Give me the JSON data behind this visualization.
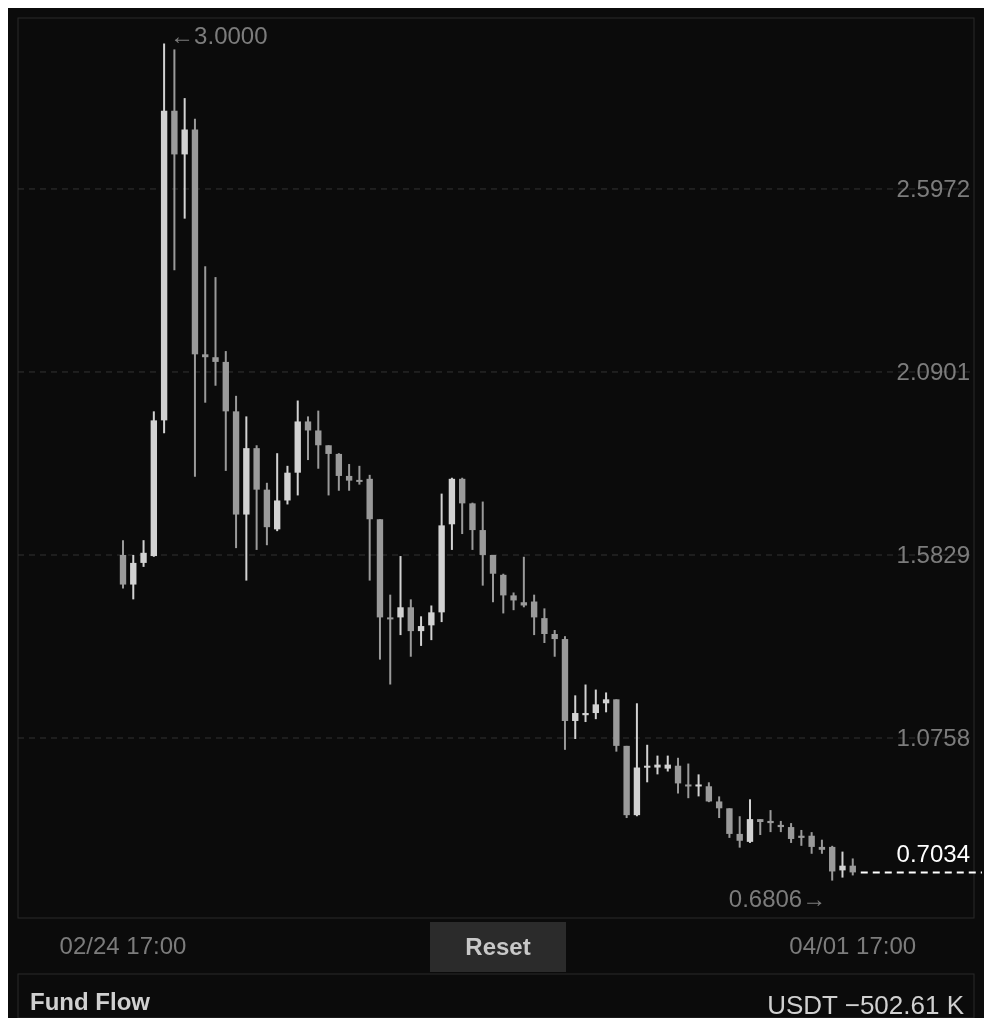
{
  "chart_data": {
    "type": "candlestick",
    "categories": [
      "02/24 17:00",
      null,
      null,
      null,
      null,
      null,
      null,
      null,
      null,
      null,
      null,
      null,
      null,
      null,
      null,
      null,
      null,
      null,
      null,
      null,
      null,
      null,
      null,
      null,
      null,
      null,
      null,
      null,
      null,
      null,
      null,
      null,
      null,
      null,
      null,
      null,
      null,
      null,
      null,
      null,
      null,
      null,
      null,
      null,
      null,
      null,
      null,
      null,
      null,
      null,
      null,
      null,
      null,
      null,
      null,
      null,
      null,
      null,
      null,
      null,
      null,
      null,
      null,
      null,
      null,
      null,
      null,
      null,
      null,
      null,
      null,
      "04/01 17:00"
    ],
    "colors": [
      "#9a9a9a",
      "#d2d2d2",
      "#d2d2d2",
      "#d2d2d2",
      "#d2d2d2",
      "#9a9a9a",
      "#d2d2d2",
      "#9a9a9a",
      "#9a9a9a",
      "#9a9a9a",
      "#9a9a9a",
      "#9a9a9a",
      "#d2d2d2",
      "#9a9a9a",
      "#9a9a9a",
      "#d2d2d2",
      "#d2d2d2",
      "#d2d2d2",
      "#9a9a9a",
      "#9a9a9a",
      "#9a9a9a",
      "#9a9a9a",
      "#9a9a9a",
      "#9a9a9a",
      "#9a9a9a",
      "#9a9a9a",
      "#9a9a9a",
      "#d2d2d2",
      "#9a9a9a",
      "#d2d2d2",
      "#d2d2d2",
      "#d2d2d2",
      "#d2d2d2",
      "#9a9a9a",
      "#9a9a9a",
      "#9a9a9a",
      "#9a9a9a",
      "#9a9a9a",
      "#9a9a9a",
      "#9a9a9a",
      "#9a9a9a",
      "#9a9a9a",
      "#9a9a9a",
      "#9a9a9a",
      "#d2d2d2",
      "#d2d2d2",
      "#d2d2d2",
      "#d2d2d2",
      "#9a9a9a",
      "#9a9a9a",
      "#d2d2d2",
      "#d2d2d2",
      "#d2d2d2",
      "#d2d2d2",
      "#9a9a9a",
      "#9a9a9a",
      "#d2d2d2",
      "#9a9a9a",
      "#9a9a9a",
      "#9a9a9a",
      "#9a9a9a",
      "#d2d2d2",
      "#9a9a9a",
      "#9a9a9a",
      "#9a9a9a",
      "#9a9a9a",
      "#9a9a9a",
      "#9a9a9a",
      "#9a9a9a",
      "#9a9a9a",
      "#d2d2d2",
      "#9a9a9a"
    ],
    "ohlc": [
      [
        1.583,
        1.624,
        1.49,
        1.501
      ],
      [
        1.501,
        1.583,
        1.46,
        1.561
      ],
      [
        1.561,
        1.624,
        1.55,
        1.589
      ],
      [
        1.58,
        1.981,
        1.578,
        1.956
      ],
      [
        1.956,
        3.0,
        1.92,
        2.814
      ],
      [
        2.814,
        2.984,
        2.372,
        2.693
      ],
      [
        2.693,
        2.849,
        2.515,
        2.762
      ],
      [
        2.762,
        2.792,
        1.8,
        2.139
      ],
      [
        2.139,
        2.383,
        2.005,
        2.131
      ],
      [
        2.131,
        2.353,
        2.052,
        2.118
      ],
      [
        2.118,
        2.148,
        1.816,
        1.981
      ],
      [
        1.981,
        2.024,
        1.602,
        1.695
      ],
      [
        1.695,
        1.967,
        1.512,
        1.879
      ],
      [
        1.879,
        1.887,
        1.597,
        1.764
      ],
      [
        1.764,
        1.783,
        1.61,
        1.66
      ],
      [
        1.654,
        1.865,
        1.649,
        1.734
      ],
      [
        1.734,
        1.83,
        1.723,
        1.811
      ],
      [
        1.811,
        2.011,
        1.748,
        1.953
      ],
      [
        1.953,
        1.967,
        1.846,
        1.928
      ],
      [
        1.928,
        1.983,
        1.822,
        1.887
      ],
      [
        1.887,
        1.887,
        1.748,
        1.863
      ],
      [
        1.863,
        1.865,
        1.761,
        1.802
      ],
      [
        1.802,
        1.835,
        1.761,
        1.789
      ],
      [
        1.791,
        1.83,
        1.778,
        1.786
      ],
      [
        1.794,
        1.805,
        1.512,
        1.682
      ],
      [
        1.682,
        1.682,
        1.293,
        1.41
      ],
      [
        1.41,
        1.473,
        1.224,
        1.405
      ],
      [
        1.41,
        1.58,
        1.361,
        1.438
      ],
      [
        1.438,
        1.46,
        1.301,
        1.372
      ],
      [
        1.372,
        1.413,
        1.331,
        1.386
      ],
      [
        1.388,
        1.443,
        1.347,
        1.424
      ],
      [
        1.424,
        1.753,
        1.397,
        1.665
      ],
      [
        1.668,
        1.797,
        1.597,
        1.794
      ],
      [
        1.794,
        1.797,
        1.641,
        1.726
      ],
      [
        1.726,
        1.728,
        1.597,
        1.652
      ],
      [
        1.652,
        1.731,
        1.498,
        1.583
      ],
      [
        1.583,
        1.583,
        1.452,
        1.531
      ],
      [
        1.528,
        1.531,
        1.421,
        1.471
      ],
      [
        1.471,
        1.479,
        1.43,
        1.457
      ],
      [
        1.452,
        1.578,
        1.438,
        1.443
      ],
      [
        1.454,
        1.473,
        1.361,
        1.41
      ],
      [
        1.408,
        1.435,
        1.339,
        1.364
      ],
      [
        1.364,
        1.375,
        1.301,
        1.35
      ],
      [
        1.35,
        1.358,
        1.043,
        1.123
      ],
      [
        1.123,
        1.194,
        1.073,
        1.145
      ],
      [
        1.139,
        1.224,
        1.12,
        1.145
      ],
      [
        1.145,
        1.21,
        1.128,
        1.169
      ],
      [
        1.172,
        1.202,
        1.147,
        1.183
      ],
      [
        1.183,
        1.183,
        1.038,
        1.054
      ],
      [
        1.054,
        1.054,
        0.854,
        0.862
      ],
      [
        0.862,
        1.172,
        0.859,
        0.994
      ],
      [
        0.994,
        1.057,
        0.953,
        0.999
      ],
      [
        0.994,
        1.027,
        0.975,
        1.002
      ],
      [
        0.991,
        1.027,
        0.983,
        1.002
      ],
      [
        0.999,
        1.021,
        0.922,
        0.95
      ],
      [
        0.947,
        1.005,
        0.909,
        0.942
      ],
      [
        0.942,
        0.975,
        0.914,
        0.947
      ],
      [
        0.942,
        0.953,
        0.898,
        0.9
      ],
      [
        0.9,
        0.914,
        0.854,
        0.881
      ],
      [
        0.881,
        0.881,
        0.799,
        0.81
      ],
      [
        0.81,
        0.859,
        0.772,
        0.791
      ],
      [
        0.788,
        0.906,
        0.785,
        0.851
      ],
      [
        0.851,
        0.851,
        0.807,
        0.843
      ],
      [
        0.846,
        0.876,
        0.815,
        0.84
      ],
      [
        0.835,
        0.846,
        0.815,
        0.829
      ],
      [
        0.829,
        0.84,
        0.785,
        0.796
      ],
      [
        0.805,
        0.821,
        0.777,
        0.799
      ],
      [
        0.805,
        0.815,
        0.755,
        0.774
      ],
      [
        0.774,
        0.794,
        0.755,
        0.766
      ],
      [
        0.774,
        0.777,
        0.6806,
        0.706
      ],
      [
        0.709,
        0.761,
        0.689,
        0.722
      ],
      [
        0.722,
        0.742,
        0.695,
        0.7034
      ]
    ],
    "ylim": [
      0.577,
      3.071
    ],
    "yticks": [
      1.0758,
      1.5829,
      2.0901,
      2.5972
    ],
    "grid": "y",
    "ref_lines": [
      {
        "axis": "y",
        "value": 0.7034,
        "label": "0.7034",
        "color": "#ffffff",
        "line_style": "dashed"
      }
    ],
    "annotations": [
      "←3.0000",
      "0.6806→",
      "Reset",
      "Fund Flow",
      "USDT −502.61 K"
    ]
  }
}
